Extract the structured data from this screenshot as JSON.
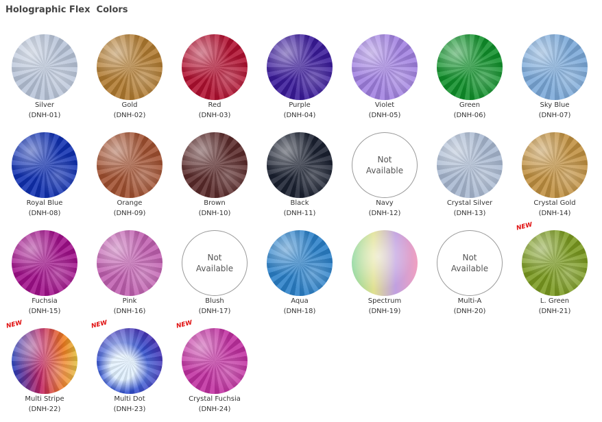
{
  "header": {
    "title": "Holographic Flex  Colors"
  },
  "items": [
    {
      "name": "Silver",
      "code": "(DNH-01)"
    },
    {
      "name": "Gold",
      "code": "(DNH-02)"
    },
    {
      "name": "Red",
      "code": "(DNH-03)"
    },
    {
      "name": "Purple",
      "code": "(DNH-04)"
    },
    {
      "name": "Violet",
      "code": "(DNH-05)"
    },
    {
      "name": "Green",
      "code": "(DNH-06)"
    },
    {
      "name": "Sky Blue",
      "code": "(DNH-07)"
    },
    {
      "name": "Royal Blue",
      "code": "(DNH-08)"
    },
    {
      "name": "Orange",
      "code": "(DNH-09)"
    },
    {
      "name": "Brown",
      "code": "(DNH-10)"
    },
    {
      "name": "Black",
      "code": "(DNH-11)"
    },
    {
      "name": "Navy",
      "code": "(DNH-12)",
      "status": "Not Available"
    },
    {
      "name": "Crystal Silver",
      "code": "(DNH-13)"
    },
    {
      "name": "Crystal Gold",
      "code": "(DNH-14)"
    },
    {
      "name": "Fuchsia",
      "code": "(DNH-15)"
    },
    {
      "name": "Pink",
      "code": "(DNH-16)"
    },
    {
      "name": "Blush",
      "code": "(DNH-17)",
      "status": "Not Available"
    },
    {
      "name": "Aqua",
      "code": "(DNH-18)"
    },
    {
      "name": "Spectrum",
      "code": "(DNH-19)"
    },
    {
      "name": "Multi-A",
      "code": "(DNH-20)",
      "status": "Not Available"
    },
    {
      "name": "L. Green",
      "code": "(DNH-21)",
      "badge": "NEW"
    },
    {
      "name": "Multi Stripe",
      "code": "(DNH-22)",
      "badge": "NEW"
    },
    {
      "name": "Multi Dot",
      "code": "(DNH-23)",
      "badge": "NEW"
    },
    {
      "name": "Crystal Fuchsia",
      "code": "(DNH-24)",
      "badge": "NEW"
    }
  ]
}
